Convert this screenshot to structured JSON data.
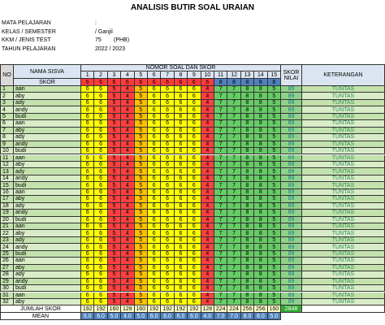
{
  "title": "ANALISIS BUTIR SOAL URAIAN",
  "info": [
    {
      "label": "MATA PELAJARAN",
      "value": ":"
    },
    {
      "label": "KELAS / SEMESTER",
      "value": "/ Ganjil"
    },
    {
      "label": "KKM / JENIS TEST",
      "value": "75",
      "note": "(PHB)"
    },
    {
      "label": "TAHUN PELAJARAN",
      "value": "2022 / 2023"
    }
  ],
  "table": {
    "headers": {
      "no": "NO",
      "name": "NAMA SISVA",
      "score": "SKOR",
      "questions": "NOMOR SOAL DAN SKOR",
      "total": "SKOR NILAI",
      "remark": "KETERANGAN"
    },
    "question_numbers": [
      1,
      2,
      3,
      4,
      5,
      6,
      7,
      8,
      9,
      10,
      11,
      12,
      13,
      14,
      15
    ],
    "max_scores": [
      6,
      6,
      6,
      6,
      6,
      6,
      6,
      6,
      6,
      6,
      8,
      8,
      8,
      8,
      8
    ],
    "column_colors": [
      "#ffff00",
      "#ffff00",
      "#ff4040",
      "#ff4040",
      "#ffc000",
      "#ffff00",
      "#ffff00",
      "#ffff00",
      "#ffff00",
      "#ff4040",
      "#66cc66",
      "#66cc66",
      "#66cc66",
      "#66cc66",
      "#66cc66"
    ],
    "rows": [
      {
        "no": 1,
        "name": "aan",
        "scores": [
          6,
          6,
          5,
          4,
          5,
          6,
          6,
          6,
          6,
          4,
          7,
          7,
          8,
          8,
          5
        ],
        "total": 89,
        "remark": "TUNTAS"
      },
      {
        "no": 2,
        "name": "aby",
        "scores": [
          6,
          6,
          5,
          4,
          5,
          6,
          6,
          6,
          6,
          4,
          7,
          7,
          8,
          8,
          5
        ],
        "total": 89,
        "remark": "TUNTAS"
      },
      {
        "no": 3,
        "name": "ady",
        "scores": [
          6,
          6,
          5,
          4,
          5,
          6,
          6,
          6,
          6,
          4,
          7,
          7,
          8,
          8,
          5
        ],
        "total": 89,
        "remark": "TUNTAS"
      },
      {
        "no": 4,
        "name": "andy",
        "scores": [
          6,
          6,
          5,
          4,
          5,
          6,
          6,
          6,
          6,
          4,
          7,
          7,
          8,
          8,
          5
        ],
        "total": 89,
        "remark": "TUNTAS"
      },
      {
        "no": 5,
        "name": "budi",
        "scores": [
          6,
          6,
          5,
          4,
          5,
          6,
          6,
          6,
          6,
          4,
          7,
          7,
          8,
          8,
          5
        ],
        "total": 89,
        "remark": "TUNTAS"
      },
      {
        "no": 6,
        "name": "aan",
        "scores": [
          6,
          6,
          5,
          4,
          5,
          6,
          6,
          6,
          6,
          4,
          7,
          7,
          8,
          8,
          5
        ],
        "total": 89,
        "remark": "TUNTAS"
      },
      {
        "no": 7,
        "name": "aby",
        "scores": [
          6,
          6,
          5,
          4,
          5,
          6,
          6,
          6,
          6,
          4,
          7,
          7,
          8,
          8,
          5
        ],
        "total": 89,
        "remark": "TUNTAS"
      },
      {
        "no": 8,
        "name": "ady",
        "scores": [
          6,
          6,
          5,
          4,
          5,
          6,
          6,
          6,
          6,
          4,
          7,
          7,
          8,
          8,
          5
        ],
        "total": 89,
        "remark": "TUNTAS"
      },
      {
        "no": 9,
        "name": "andy",
        "scores": [
          6,
          6,
          5,
          4,
          5,
          6,
          6,
          6,
          6,
          4,
          7,
          7,
          8,
          8,
          5
        ],
        "total": 89,
        "remark": "TUNTAS"
      },
      {
        "no": 10,
        "name": "budi",
        "scores": [
          6,
          6,
          5,
          4,
          5,
          6,
          6,
          6,
          6,
          4,
          7,
          7,
          8,
          8,
          5
        ],
        "total": 89,
        "remark": "TUNTAS"
      },
      {
        "no": 11,
        "name": "aan",
        "scores": [
          6,
          6,
          5,
          4,
          5,
          6,
          6,
          6,
          6,
          4,
          7,
          7,
          8,
          8,
          5
        ],
        "total": 89,
        "remark": "TUNTAS"
      },
      {
        "no": 12,
        "name": "aby",
        "scores": [
          6,
          6,
          5,
          4,
          5,
          6,
          6,
          6,
          6,
          4,
          7,
          7,
          8,
          8,
          5
        ],
        "total": 89,
        "remark": "TUNTAS"
      },
      {
        "no": 13,
        "name": "ady",
        "scores": [
          6,
          6,
          5,
          4,
          5,
          6,
          6,
          6,
          6,
          4,
          7,
          7,
          8,
          8,
          5
        ],
        "total": 89,
        "remark": "TUNTAS"
      },
      {
        "no": 14,
        "name": "andy",
        "scores": [
          6,
          6,
          5,
          4,
          5,
          6,
          6,
          6,
          6,
          4,
          7,
          7,
          8,
          8,
          5
        ],
        "total": 89,
        "remark": "TUNTAS"
      },
      {
        "no": 15,
        "name": "budi",
        "scores": [
          6,
          6,
          5,
          4,
          5,
          6,
          6,
          6,
          6,
          4,
          7,
          7,
          8,
          8,
          5
        ],
        "total": 89,
        "remark": "TUNTAS"
      },
      {
        "no": 16,
        "name": "aan",
        "scores": [
          6,
          6,
          5,
          4,
          5,
          6,
          6,
          6,
          6,
          4,
          7,
          7,
          8,
          8,
          5
        ],
        "total": 89,
        "remark": "TUNTAS"
      },
      {
        "no": 17,
        "name": "aby",
        "scores": [
          6,
          6,
          5,
          4,
          5,
          6,
          6,
          6,
          6,
          4,
          7,
          7,
          8,
          8,
          5
        ],
        "total": 89,
        "remark": "TUNTAS"
      },
      {
        "no": 18,
        "name": "ady",
        "scores": [
          6,
          6,
          5,
          4,
          5,
          6,
          6,
          6,
          6,
          4,
          7,
          7,
          8,
          8,
          5
        ],
        "total": 89,
        "remark": "TUNTAS"
      },
      {
        "no": 19,
        "name": "andy",
        "scores": [
          6,
          6,
          5,
          4,
          5,
          6,
          6,
          6,
          6,
          4,
          7,
          7,
          8,
          8,
          5
        ],
        "total": 89,
        "remark": "TUNTAS"
      },
      {
        "no": 20,
        "name": "budi",
        "scores": [
          6,
          6,
          5,
          4,
          5,
          6,
          6,
          6,
          6,
          4,
          7,
          7,
          8,
          8,
          5
        ],
        "total": 89,
        "remark": "TUNTAS"
      },
      {
        "no": 21,
        "name": "aan",
        "scores": [
          6,
          6,
          5,
          4,
          5,
          6,
          6,
          6,
          6,
          4,
          7,
          7,
          8,
          8,
          5
        ],
        "total": 89,
        "remark": "TUNTAS"
      },
      {
        "no": 22,
        "name": "aby",
        "scores": [
          6,
          6,
          5,
          4,
          5,
          6,
          6,
          6,
          6,
          4,
          7,
          7,
          8,
          8,
          5
        ],
        "total": 89,
        "remark": "TUNTAS"
      },
      {
        "no": 23,
        "name": "ady",
        "scores": [
          6,
          6,
          5,
          4,
          5,
          6,
          6,
          6,
          6,
          4,
          7,
          7,
          8,
          8,
          5
        ],
        "total": 89,
        "remark": "TUNTAS"
      },
      {
        "no": 24,
        "name": "andy",
        "scores": [
          6,
          6,
          5,
          4,
          5,
          6,
          6,
          6,
          6,
          4,
          7,
          7,
          8,
          8,
          5
        ],
        "total": 89,
        "remark": "TUNTAS"
      },
      {
        "no": 25,
        "name": "budi",
        "scores": [
          6,
          6,
          5,
          4,
          5,
          6,
          6,
          6,
          6,
          4,
          7,
          7,
          8,
          8,
          5
        ],
        "total": 89,
        "remark": "TUNTAS"
      },
      {
        "no": 26,
        "name": "aan",
        "scores": [
          6,
          6,
          5,
          4,
          5,
          6,
          6,
          6,
          6,
          4,
          7,
          7,
          8,
          8,
          5
        ],
        "total": 89,
        "remark": "TUNTAS"
      },
      {
        "no": 27,
        "name": "aby",
        "scores": [
          6,
          6,
          5,
          4,
          5,
          6,
          6,
          6,
          6,
          4,
          7,
          7,
          8,
          8,
          5
        ],
        "total": 89,
        "remark": "TUNTAS"
      },
      {
        "no": 28,
        "name": "ady",
        "scores": [
          6,
          6,
          5,
          4,
          5,
          6,
          6,
          6,
          6,
          4,
          7,
          7,
          8,
          8,
          5
        ],
        "total": 89,
        "remark": "TUNTAS"
      },
      {
        "no": 29,
        "name": "andy",
        "scores": [
          6,
          6,
          5,
          4,
          5,
          6,
          6,
          6,
          6,
          4,
          7,
          7,
          8,
          8,
          5
        ],
        "total": 89,
        "remark": "TUNTAS"
      },
      {
        "no": 30,
        "name": "budi",
        "scores": [
          6,
          6,
          5,
          4,
          5,
          6,
          6,
          6,
          6,
          4,
          7,
          7,
          8,
          8,
          5
        ],
        "total": 89,
        "remark": "TUNTAS"
      },
      {
        "no": 31,
        "name": "aan",
        "scores": [
          6,
          6,
          5,
          4,
          5,
          6,
          6,
          6,
          6,
          4,
          7,
          7,
          8,
          8,
          5
        ],
        "total": 89,
        "remark": "TUNTAS"
      },
      {
        "no": 32,
        "name": "aby",
        "scores": [
          6,
          6,
          5,
          4,
          5,
          6,
          6,
          6,
          6,
          4,
          7,
          7,
          8,
          8,
          5
        ],
        "total": 89,
        "remark": "TUNTAS"
      }
    ],
    "sum_label": "JUMLAH SKOR",
    "sums": [
      192,
      192,
      160,
      128,
      160,
      192,
      192,
      192,
      192,
      128,
      224,
      224,
      256,
      256,
      160
    ],
    "sum_total": 2848,
    "mean_label": "MEAN",
    "means": [
      {
        "value": 6,
        "label": "6.0"
      },
      {
        "value": 6,
        "label": "6.0"
      },
      {
        "value": 5,
        "label": "5.0"
      },
      {
        "value": 4,
        "label": "4.0"
      },
      {
        "value": 5,
        "label": "5.0"
      },
      {
        "value": 6,
        "label": "6.0"
      },
      {
        "value": 6,
        "label": "6.0"
      },
      {
        "value": 6,
        "label": "6.0"
      },
      {
        "value": 6,
        "label": "6.0"
      },
      {
        "value": 4,
        "label": "4.0"
      },
      {
        "value": 7,
        "label": "7.0"
      },
      {
        "value": 7,
        "label": "7.0"
      },
      {
        "value": 8,
        "label": "8.0"
      },
      {
        "value": 8,
        "label": "8.0"
      },
      {
        "value": 5,
        "label": "5.0"
      }
    ]
  }
}
